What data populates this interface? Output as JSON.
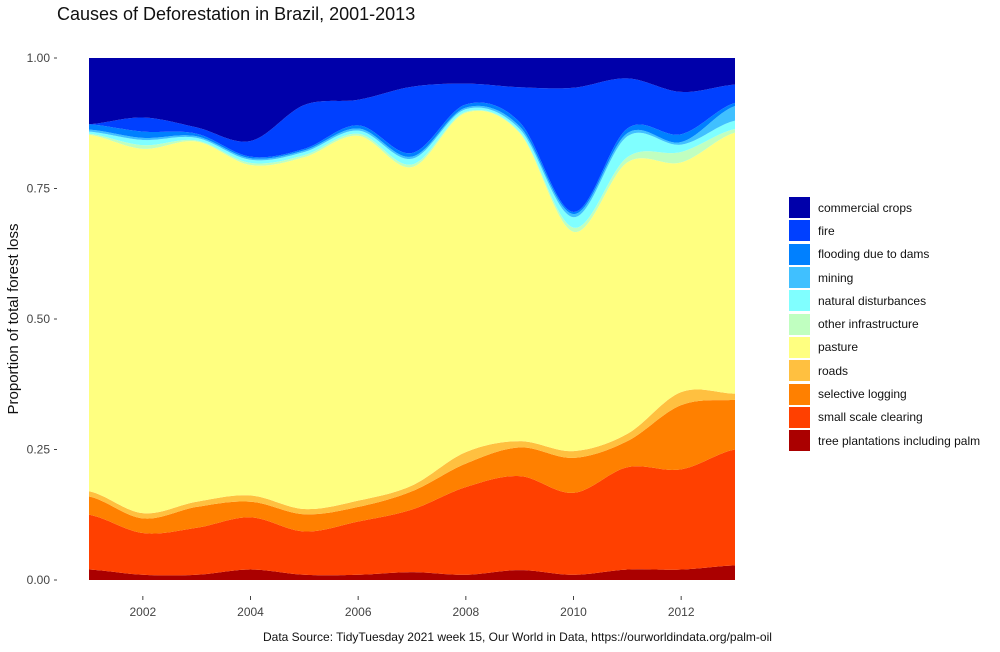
{
  "chart_data": {
    "type": "area",
    "stacked": "proportion",
    "title": "Causes of Deforestation in Brazil, 2001-2013",
    "ylabel": "Proportion of total forest loss",
    "xlabel": "",
    "caption": "Data Source: TidyTuesday 2021 week 15, Our World in Data, https://ourworldindata.org/palm-oil",
    "xlim": [
      2001,
      2013
    ],
    "ylim": [
      0,
      1
    ],
    "x_ticks": [
      2002,
      2004,
      2006,
      2008,
      2010,
      2012
    ],
    "y_ticks": [
      0.0,
      0.25,
      0.5,
      0.75,
      1.0
    ],
    "y_tick_labels": [
      "0.00",
      "0.25",
      "0.50",
      "0.75",
      "1.00"
    ],
    "grid": false,
    "legend_position": "right",
    "x": [
      2001,
      2002,
      2003,
      2004,
      2005,
      2006,
      2007,
      2008,
      2009,
      2010,
      2011,
      2012,
      2013
    ],
    "series": [
      {
        "name": "commercial crops",
        "color": "#0000aa",
        "values": [
          0.127,
          0.114,
          0.133,
          0.159,
          0.09,
          0.08,
          0.055,
          0.049,
          0.056,
          0.057,
          0.039,
          0.065,
          0.051
        ]
      },
      {
        "name": "fire",
        "color": "#0040ff",
        "values": [
          0.0,
          0.027,
          0.012,
          0.03,
          0.084,
          0.049,
          0.127,
          0.04,
          0.067,
          0.238,
          0.096,
          0.081,
          0.035
        ]
      },
      {
        "name": "flooding due to dams",
        "color": "#0080ff",
        "values": [
          0.01,
          0.012,
          0.005,
          0.003,
          0.003,
          0.006,
          0.007,
          0.006,
          0.008,
          0.004,
          0.009,
          0.015,
          0.006
        ]
      },
      {
        "name": "mining",
        "color": "#40c0ff",
        "values": [
          0.004,
          0.004,
          0.003,
          0.003,
          0.003,
          0.004,
          0.004,
          0.003,
          0.005,
          0.006,
          0.006,
          0.005,
          0.028
        ]
      },
      {
        "name": "natural disturbances",
        "color": "#80ffff",
        "values": [
          0.004,
          0.01,
          0.005,
          0.006,
          0.006,
          0.006,
          0.011,
          0.005,
          0.006,
          0.02,
          0.04,
          0.014,
          0.016
        ]
      },
      {
        "name": "other infrastructure",
        "color": "#c0ffc0",
        "values": [
          0.002,
          0.007,
          0.002,
          0.004,
          0.004,
          0.004,
          0.005,
          0.002,
          0.002,
          0.008,
          0.01,
          0.02,
          0.007
        ]
      },
      {
        "name": "pasture",
        "color": "#ffff80",
        "values": [
          0.683,
          0.698,
          0.69,
          0.633,
          0.674,
          0.699,
          0.61,
          0.65,
          0.59,
          0.42,
          0.52,
          0.44,
          0.5
        ]
      },
      {
        "name": "roads",
        "color": "#ffc040",
        "values": [
          0.01,
          0.01,
          0.01,
          0.012,
          0.01,
          0.012,
          0.011,
          0.022,
          0.012,
          0.013,
          0.014,
          0.025,
          0.012
        ]
      },
      {
        "name": "selective logging",
        "color": "#ff8000",
        "values": [
          0.035,
          0.028,
          0.04,
          0.03,
          0.033,
          0.028,
          0.035,
          0.045,
          0.055,
          0.067,
          0.05,
          0.123,
          0.095
        ]
      },
      {
        "name": "small scale clearing",
        "color": "#ff4000",
        "values": [
          0.105,
          0.08,
          0.09,
          0.1,
          0.083,
          0.102,
          0.12,
          0.168,
          0.18,
          0.157,
          0.196,
          0.192,
          0.222
        ]
      },
      {
        "name": "tree plantations including palm",
        "color": "#aa0000",
        "values": [
          0.02,
          0.01,
          0.01,
          0.02,
          0.01,
          0.01,
          0.015,
          0.01,
          0.019,
          0.01,
          0.02,
          0.02,
          0.028
        ]
      }
    ]
  }
}
